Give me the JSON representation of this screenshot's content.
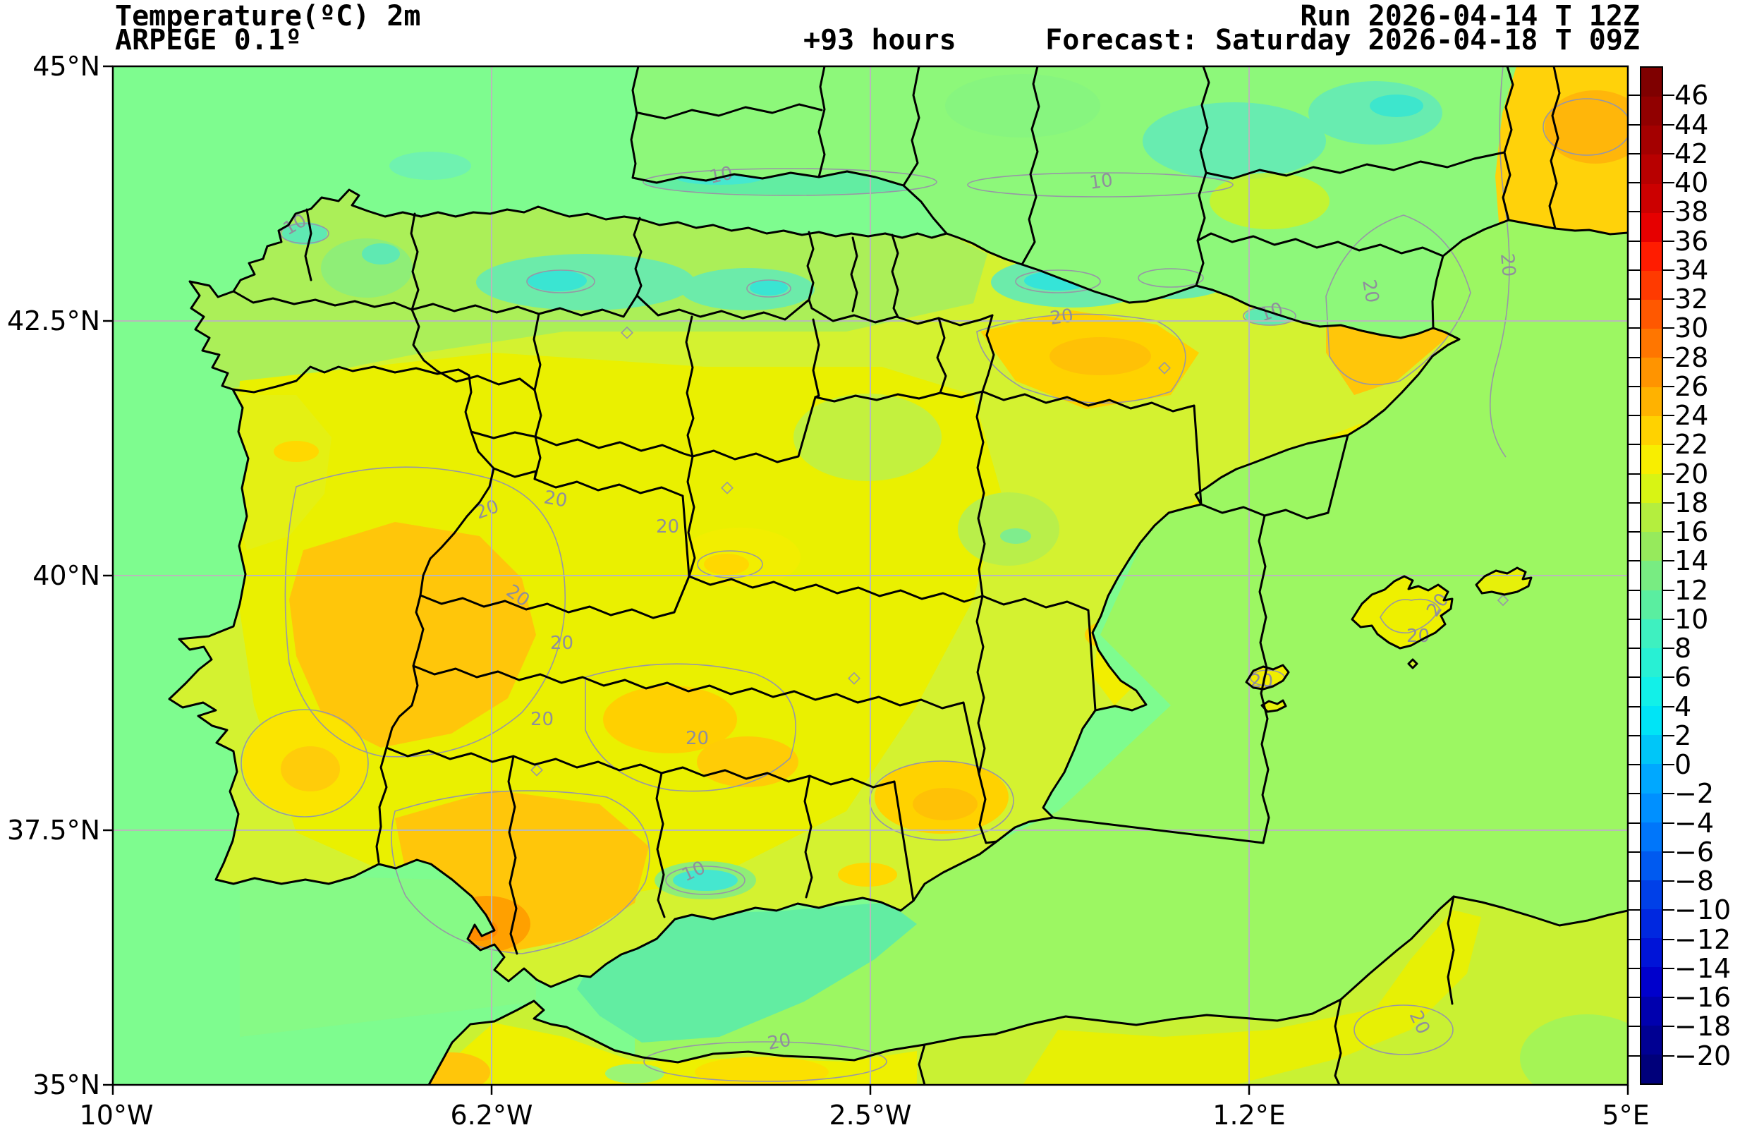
{
  "header": {
    "title": "Temperature(ºC) 2m",
    "model": "ARPEGE 0.1º",
    "lead_time": "+93 hours",
    "run_label": "Run 2026-04-14 T 12Z",
    "forecast_label": "Forecast: Saturday 2026-04-18 T 09Z"
  },
  "axes": {
    "lat_ticks": [
      "45°N",
      "42.5°N",
      "40°N",
      "37.5°N",
      "35°N"
    ],
    "lon_ticks": [
      "10°W",
      "6.2°W",
      "2.5°W",
      "1.2°E",
      "5°E"
    ]
  },
  "colorbar": {
    "unit": "°C",
    "top_value": 48,
    "bottom_value": -22,
    "step": 2,
    "tick_labels": [
      46,
      44,
      42,
      40,
      38,
      36,
      34,
      32,
      30,
      28,
      26,
      24,
      22,
      20,
      18,
      16,
      14,
      12,
      10,
      8,
      6,
      4,
      2,
      0,
      -2,
      -4,
      -6,
      -8,
      -10,
      -12,
      -14,
      -16,
      -18,
      -20
    ],
    "band_colors_top_to_bottom": [
      "#7f0000",
      "#910000",
      "#a40000",
      "#b80000",
      "#cc0000",
      "#e60000",
      "#ff1c00",
      "#ff3a00",
      "#ff5800",
      "#ff7600",
      "#ff9400",
      "#ffb200",
      "#ffd200",
      "#f8ee00",
      "#d8f414",
      "#b4ee3e",
      "#96ea5c",
      "#78ec82",
      "#5aeea0",
      "#3ef0c0",
      "#28f0d4",
      "#12f0e8",
      "#00e4f6",
      "#00c6f8",
      "#00a8ff",
      "#0090ff",
      "#0076fa",
      "#005af0",
      "#0040e8",
      "#0028e0",
      "#0014d8",
      "#0000cc",
      "#0000ae",
      "#000092",
      "#00007a"
    ]
  },
  "contour_labels": {
    "warm": "20",
    "cold": "10"
  },
  "map_colors": {
    "sea": "#7efc8f",
    "sea_mediterranean": "#9cf762",
    "sea_alboran": "#62eda2",
    "land_base": "#d4f230",
    "warm_yellow": "#eaf000",
    "orange": "#ffc60a",
    "hot_orange": "#ff9e00",
    "cool_green": "#a8ef5c",
    "cold_teal": "#6cebaa",
    "cold_cyan": "#3ae5d2",
    "grid": "#b9b9b9",
    "contour": "#9797a6",
    "border": "#000000"
  },
  "chart_data": {
    "type": "heatmap",
    "title": "Temperature(ºC) 2m",
    "units": "°C",
    "legend_range": [
      -22,
      48
    ],
    "legend_ticks": [
      46,
      44,
      42,
      40,
      38,
      36,
      34,
      32,
      30,
      28,
      26,
      24,
      22,
      20,
      18,
      16,
      14,
      12,
      10,
      8,
      6,
      4,
      2,
      0,
      -2,
      -4,
      -6,
      -8,
      -10,
      -12,
      -14,
      -16,
      -18,
      -20
    ],
    "x_ticks": [
      "10°W",
      "6.2°W",
      "2.5°W",
      "1.2°E",
      "5°E"
    ],
    "y_ticks": [
      "45°N",
      "42.5°N",
      "40°N",
      "37.5°N",
      "35°N"
    ]
  }
}
